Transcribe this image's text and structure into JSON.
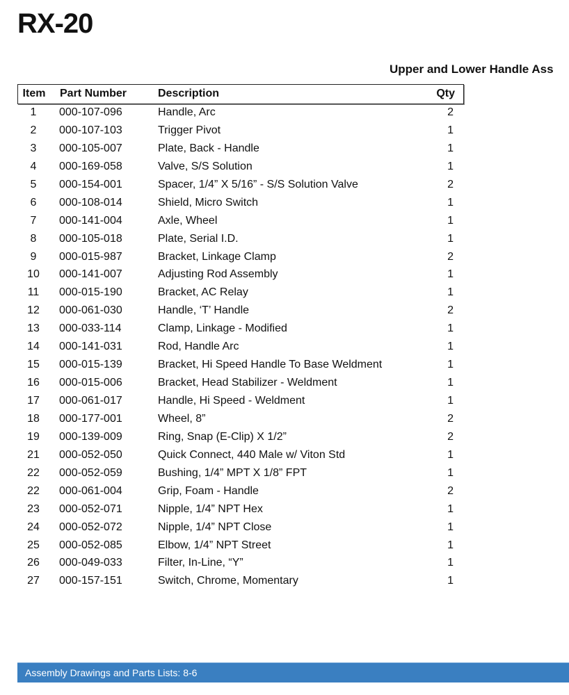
{
  "document": {
    "title": "RX-20",
    "subtitle": "Upper and Lower Handle Ass",
    "footer": "Assembly Drawings and Parts Lists:  8-6"
  },
  "table": {
    "headers": {
      "item": "Item",
      "part": "Part Number",
      "desc": "Description",
      "qty": "Qty"
    },
    "rows": [
      {
        "item": "1",
        "part": "000-107-096",
        "desc": "Handle, Arc",
        "qty": "2"
      },
      {
        "item": "2",
        "part": "000-107-103",
        "desc": "Trigger Pivot",
        "qty": "1"
      },
      {
        "item": "3",
        "part": "000-105-007",
        "desc": "Plate, Back - Handle",
        "qty": "1"
      },
      {
        "item": "4",
        "part": "000-169-058",
        "desc": "Valve, S/S Solution",
        "qty": "1"
      },
      {
        "item": "5",
        "part": "000-154-001",
        "desc": "Spacer, 1/4” X 5/16” - S/S Solution Valve",
        "qty": "2"
      },
      {
        "item": "6",
        "part": "000-108-014",
        "desc": "Shield, Micro Switch",
        "qty": "1"
      },
      {
        "item": "7",
        "part": "000-141-004",
        "desc": "Axle, Wheel",
        "qty": "1"
      },
      {
        "item": "8",
        "part": "000-105-018",
        "desc": "Plate, Serial I.D.",
        "qty": "1"
      },
      {
        "item": "9",
        "part": "000-015-987",
        "desc": "Bracket, Linkage Clamp",
        "qty": "2"
      },
      {
        "item": "10",
        "part": "000-141-007",
        "desc": "Adjusting Rod Assembly",
        "qty": "1"
      },
      {
        "item": "11",
        "part": "000-015-190",
        "desc": "Bracket, AC Relay",
        "qty": "1"
      },
      {
        "item": "12",
        "part": "000-061-030",
        "desc": "Handle, ‘T’ Handle",
        "qty": "2"
      },
      {
        "item": "13",
        "part": "000-033-114",
        "desc": "Clamp, Linkage - Modified",
        "qty": "1"
      },
      {
        "item": "14",
        "part": "000-141-031",
        "desc": "Rod, Handle Arc",
        "qty": "1"
      },
      {
        "item": "15",
        "part": "000-015-139",
        "desc": "Bracket, Hi Speed Handle To Base Weldment",
        "qty": "1"
      },
      {
        "item": "16",
        "part": "000-015-006",
        "desc": "Bracket, Head Stabilizer - Weldment",
        "qty": "1"
      },
      {
        "item": "17",
        "part": "000-061-017",
        "desc": "Handle, Hi Speed - Weldment",
        "qty": "1"
      },
      {
        "item": "18",
        "part": "000-177-001",
        "desc": "Wheel, 8”",
        "qty": "2"
      },
      {
        "item": "19",
        "part": "000-139-009",
        "desc": "Ring, Snap (E-Clip) X 1/2”",
        "qty": "2"
      },
      {
        "item": "21",
        "part": "000-052-050",
        "desc": "Quick Connect, 440 Male w/ Viton Std",
        "qty": "1"
      },
      {
        "item": "22",
        "part": "000-052-059",
        "desc": "Bushing, 1/4” MPT X 1/8” FPT",
        "qty": "1"
      },
      {
        "item": "22",
        "part": "000-061-004",
        "desc": "Grip, Foam - Handle",
        "qty": "2"
      },
      {
        "item": "23",
        "part": "000-052-071",
        "desc": "Nipple, 1/4” NPT Hex",
        "qty": "1"
      },
      {
        "item": "24",
        "part": "000-052-072",
        "desc": "Nipple, 1/4” NPT Close",
        "qty": "1"
      },
      {
        "item": "25",
        "part": "000-052-085",
        "desc": "Elbow, 1/4” NPT Street",
        "qty": "1"
      },
      {
        "item": "26",
        "part": "000-049-033",
        "desc": "Filter, In-Line, “Y”",
        "qty": "1"
      },
      {
        "item": "27",
        "part": "000-157-151",
        "desc": "Switch, Chrome, Momentary",
        "qty": "1"
      }
    ]
  },
  "colors": {
    "footer_bar": "#3a7fc1"
  }
}
